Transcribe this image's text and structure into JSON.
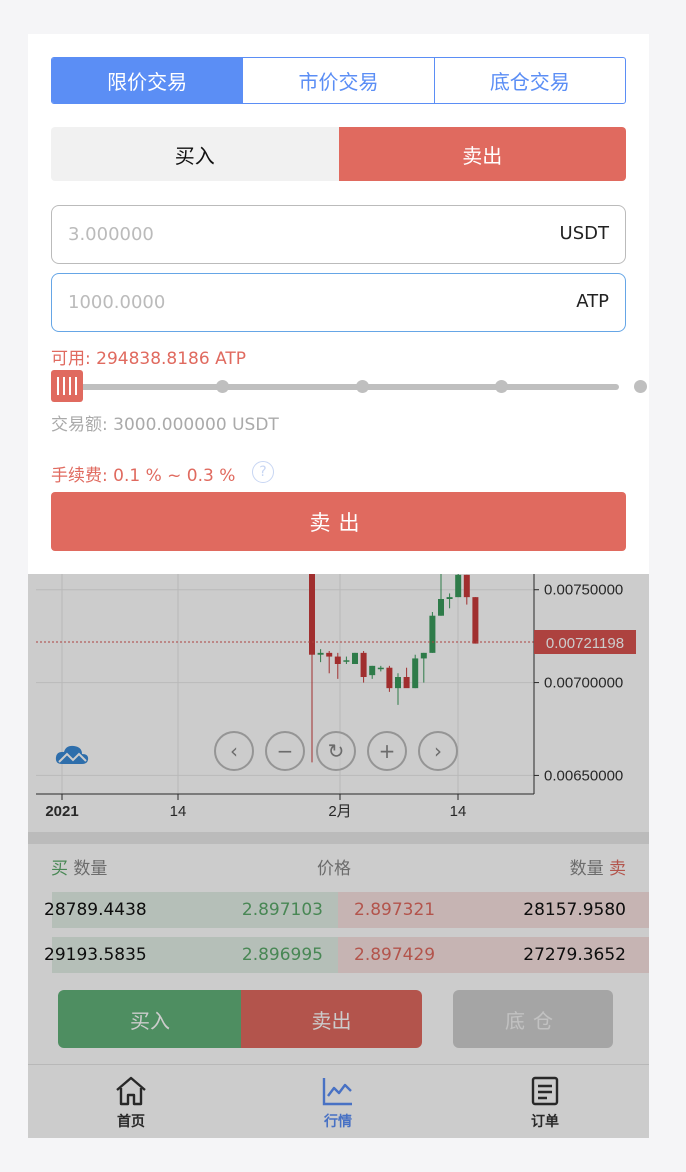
{
  "order_types": [
    {
      "label": "限价交易",
      "active": true
    },
    {
      "label": "市价交易",
      "active": false
    },
    {
      "label": "底仓交易",
      "active": false
    }
  ],
  "side": {
    "buy_label": "买入",
    "sell_label": "卖出",
    "selected": "sell"
  },
  "price_field": {
    "placeholder": "3.000000",
    "unit": "USDT"
  },
  "qty_field": {
    "placeholder": "1000.0000",
    "unit": "ATP"
  },
  "available": "可用: 294838.8186 ATP",
  "slider": {
    "value_fraction": 0
  },
  "trade_amount": "交易额: 3000.000000 USDT",
  "fee": "手续费: 0.1 % ~ 0.3 %",
  "help_icon": "?",
  "submit_label": "卖出",
  "chart": {
    "price_ticks": [
      "0.00750000",
      "0.00700000",
      "0.00650000"
    ],
    "current_price": "0.00721198",
    "x_ticks": [
      "2021",
      "14",
      "2月",
      "14"
    ],
    "colors": {
      "up": "#3a9a5c",
      "down": "#c83a3a",
      "price_tag": "#d9534f"
    }
  },
  "chart_data": {
    "type": "candlestick",
    "ylim": [
      0.0064,
      0.0078
    ],
    "candles": [
      {
        "o": 0.00765,
        "h": 0.0078,
        "l": 0.00657,
        "c": 0.00715
      },
      {
        "o": 0.00715,
        "h": 0.00718,
        "l": 0.00711,
        "c": 0.00716
      },
      {
        "o": 0.00716,
        "h": 0.00717,
        "l": 0.00705,
        "c": 0.00714
      },
      {
        "o": 0.00714,
        "h": 0.00716,
        "l": 0.00702,
        "c": 0.0071
      },
      {
        "o": 0.00712,
        "h": 0.00714,
        "l": 0.0071,
        "c": 0.00712
      },
      {
        "o": 0.0071,
        "h": 0.00716,
        "l": 0.0071,
        "c": 0.00716
      },
      {
        "o": 0.00716,
        "h": 0.00717,
        "l": 0.007,
        "c": 0.00703
      },
      {
        "o": 0.00704,
        "h": 0.00709,
        "l": 0.00702,
        "c": 0.00709
      },
      {
        "o": 0.00708,
        "h": 0.00709,
        "l": 0.00706,
        "c": 0.00708
      },
      {
        "o": 0.00708,
        "h": 0.00709,
        "l": 0.00695,
        "c": 0.00697
      },
      {
        "o": 0.00697,
        "h": 0.00705,
        "l": 0.00688,
        "c": 0.00703
      },
      {
        "o": 0.00703,
        "h": 0.00708,
        "l": 0.00698,
        "c": 0.00697
      },
      {
        "o": 0.00697,
        "h": 0.00715,
        "l": 0.00697,
        "c": 0.00713
      },
      {
        "o": 0.00713,
        "h": 0.00716,
        "l": 0.007,
        "c": 0.00716
      },
      {
        "o": 0.00716,
        "h": 0.00738,
        "l": 0.00716,
        "c": 0.00736
      },
      {
        "o": 0.00736,
        "h": 0.0076,
        "l": 0.00736,
        "c": 0.00745
      },
      {
        "o": 0.00745,
        "h": 0.00748,
        "l": 0.0074,
        "c": 0.00746
      },
      {
        "o": 0.00746,
        "h": 0.0076,
        "l": 0.00746,
        "c": 0.00758
      },
      {
        "o": 0.00758,
        "h": 0.00758,
        "l": 0.00742,
        "c": 0.00746
      },
      {
        "o": 0.00746,
        "h": 0.00746,
        "l": 0.00721,
        "c": 0.00721
      }
    ]
  },
  "order_book": {
    "head": {
      "buy": "买",
      "qty_left": "数量",
      "price": "价格",
      "qty_right": "数量",
      "sell": "卖"
    },
    "rows": [
      {
        "bid_qty": "28789.4438",
        "bid_price": "2.897103",
        "ask_price": "2.897321",
        "ask_qty": "28157.9580"
      },
      {
        "bid_qty": "29193.5835",
        "bid_price": "2.896995",
        "ask_price": "2.897429",
        "ask_qty": "27279.3652"
      }
    ]
  },
  "actions": {
    "buy": "买入",
    "sell": "卖出",
    "position": "底仓"
  },
  "tabbar": [
    {
      "label": "首页",
      "icon": "home-icon"
    },
    {
      "label": "行情",
      "icon": "chart-icon",
      "active": true
    },
    {
      "label": "订单",
      "icon": "order-icon"
    }
  ]
}
